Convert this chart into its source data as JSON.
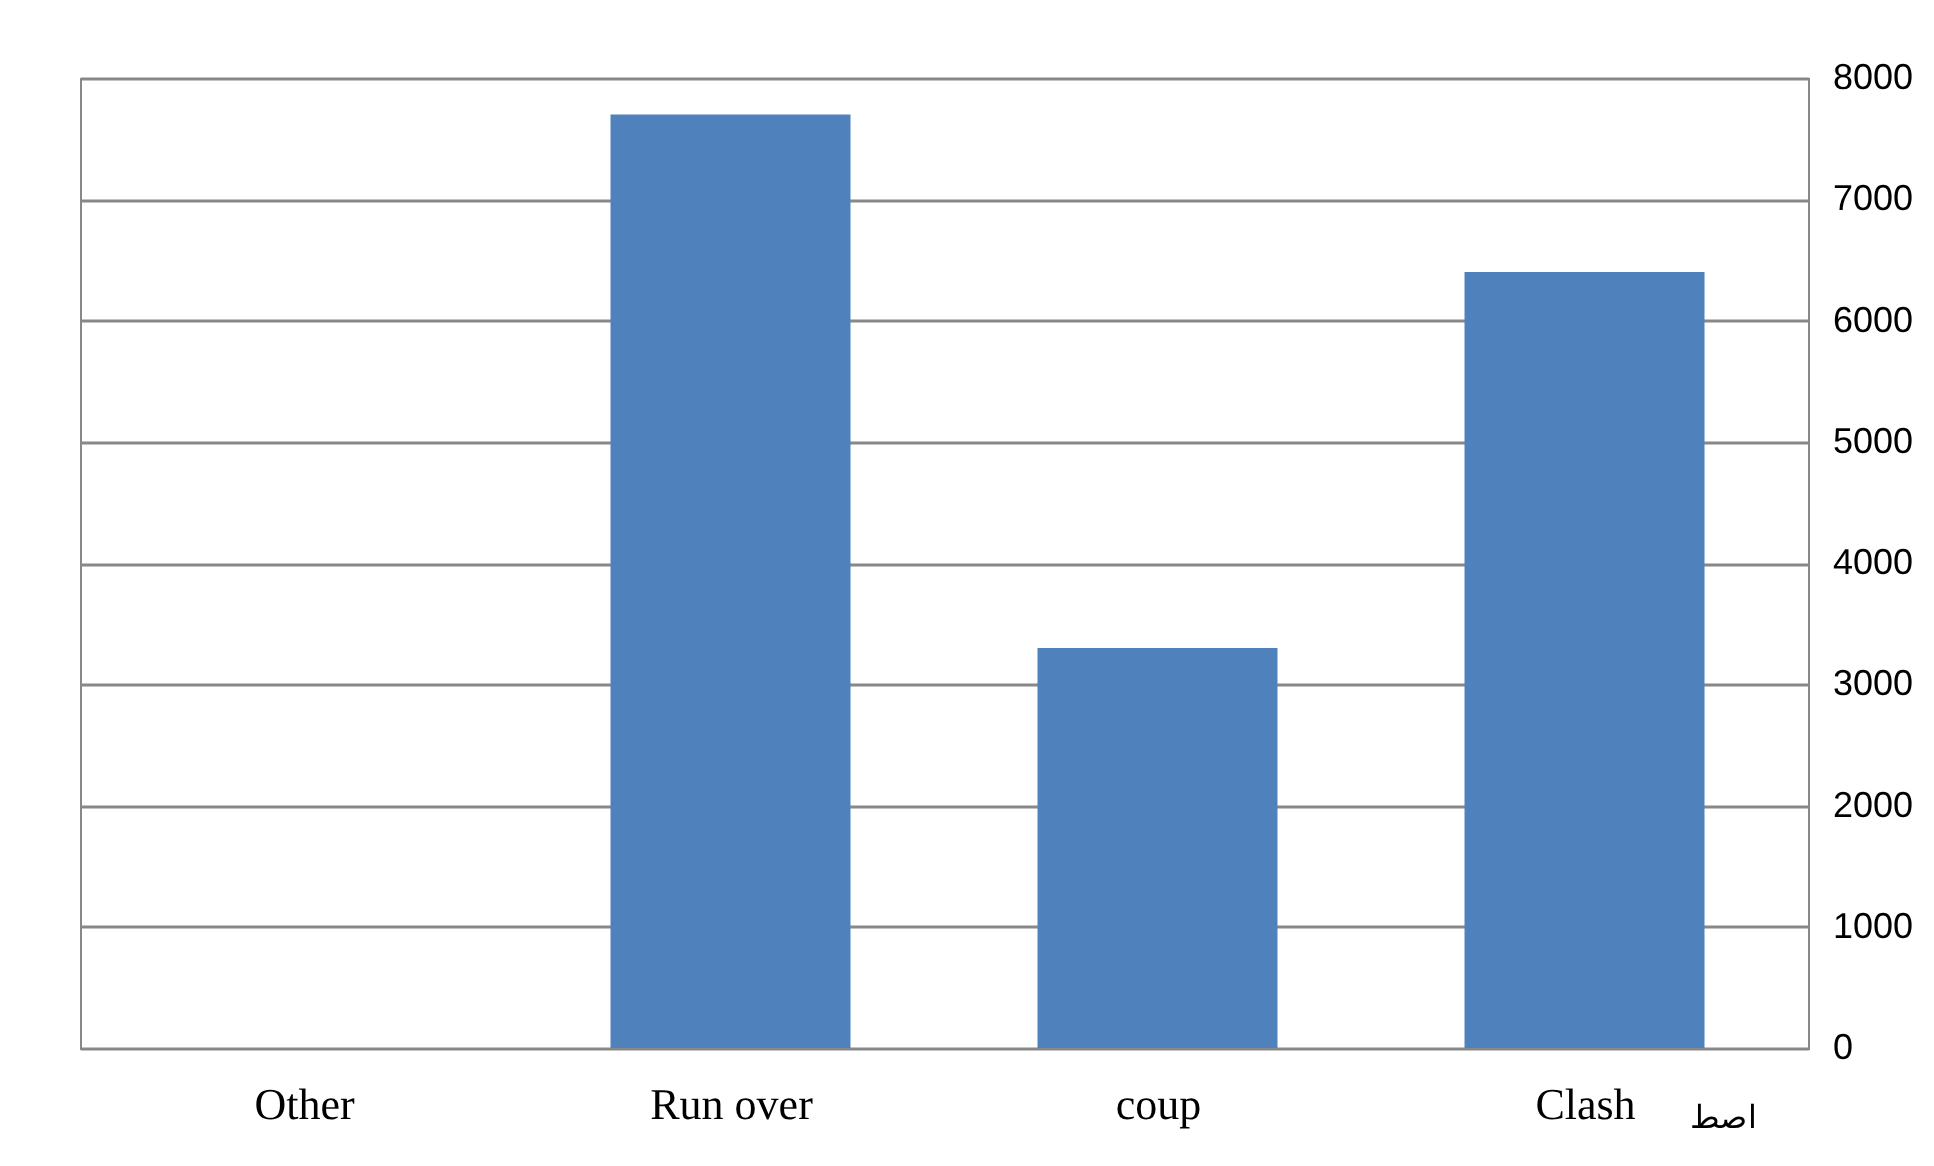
{
  "chart_data": {
    "type": "bar",
    "categories": [
      "Other",
      "Run over",
      "coup",
      "Clash"
    ],
    "values": [
      0,
      7700,
      3300,
      6400
    ],
    "color": "#4f81bd",
    "ylim": [
      0,
      8000
    ],
    "yticks": [
      0,
      1000,
      2000,
      3000,
      4000,
      5000,
      6000,
      7000,
      8000
    ],
    "grid": "y",
    "annotations": [
      "اصط"
    ]
  }
}
